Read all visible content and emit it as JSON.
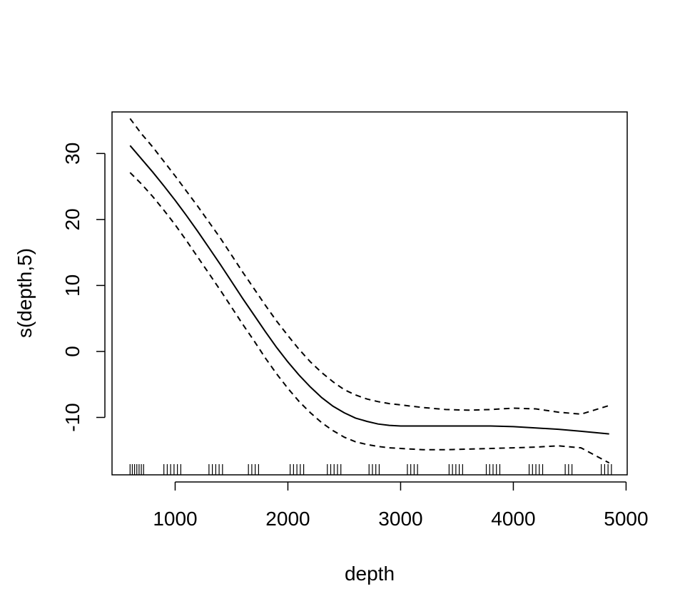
{
  "chart_data": {
    "type": "line",
    "title": "",
    "xlabel": "depth",
    "ylabel": "s(depth,5)",
    "xlim": [
      440,
      5010
    ],
    "ylim": [
      -18.7,
      36.3
    ],
    "x_ticks": [
      1000,
      2000,
      3000,
      4000,
      5000
    ],
    "x_tick_labels": [
      "1000",
      "2000",
      "3000",
      "4000",
      "5000"
    ],
    "y_ticks": [
      -10,
      0,
      10,
      20,
      30
    ],
    "y_tick_labels": [
      "-10",
      "0",
      "10",
      "20",
      "30"
    ],
    "grid": false,
    "legend": "none",
    "series": [
      {
        "style": "solid",
        "x": [
          600,
          700,
          800,
          900,
          1000,
          1100,
          1200,
          1300,
          1400,
          1500,
          1600,
          1700,
          1800,
          1900,
          2000,
          2100,
          2200,
          2300,
          2400,
          2500,
          2600,
          2700,
          2800,
          2900,
          3000,
          3100,
          3200,
          3400,
          3600,
          3800,
          4000,
          4200,
          4400,
          4600,
          4850
        ],
        "y": [
          31.2,
          29.2,
          27.2,
          25.1,
          22.9,
          20.6,
          18.2,
          15.7,
          13.2,
          10.6,
          8.0,
          5.5,
          3.0,
          0.6,
          -1.6,
          -3.6,
          -5.4,
          -7.0,
          -8.3,
          -9.3,
          -10.1,
          -10.6,
          -11.0,
          -11.2,
          -11.3,
          -11.3,
          -11.3,
          -11.3,
          -11.3,
          -11.3,
          -11.4,
          -11.6,
          -11.8,
          -12.1,
          -12.5
        ]
      },
      {
        "style": "dashed",
        "x": [
          600,
          700,
          800,
          900,
          1000,
          1100,
          1200,
          1300,
          1400,
          1500,
          1600,
          1700,
          1800,
          1900,
          2000,
          2100,
          2200,
          2300,
          2400,
          2500,
          2600,
          2700,
          2800,
          2900,
          3000,
          3100,
          3200,
          3400,
          3600,
          3800,
          4000,
          4200,
          4400,
          4600,
          4850
        ],
        "y": [
          35.3,
          33.0,
          31.0,
          28.8,
          26.6,
          24.3,
          22.0,
          19.6,
          17.2,
          14.6,
          12.0,
          9.5,
          7.0,
          4.6,
          2.4,
          0.3,
          -1.6,
          -3.2,
          -4.6,
          -5.8,
          -6.6,
          -7.2,
          -7.6,
          -7.9,
          -8.1,
          -8.3,
          -8.5,
          -8.8,
          -8.9,
          -8.8,
          -8.6,
          -8.7,
          -9.2,
          -9.5,
          -8.2
        ]
      },
      {
        "style": "dashed",
        "x": [
          600,
          700,
          800,
          900,
          1000,
          1100,
          1200,
          1300,
          1400,
          1500,
          1600,
          1700,
          1800,
          1900,
          2000,
          2100,
          2200,
          2300,
          2400,
          2500,
          2600,
          2700,
          2800,
          2900,
          3000,
          3100,
          3200,
          3400,
          3600,
          3800,
          4000,
          4200,
          4400,
          4600,
          4850
        ],
        "y": [
          27.1,
          25.4,
          23.5,
          21.4,
          19.2,
          16.8,
          14.3,
          11.8,
          9.3,
          6.7,
          4.1,
          1.6,
          -1.0,
          -3.4,
          -5.6,
          -7.6,
          -9.3,
          -10.8,
          -12.0,
          -13.0,
          -13.7,
          -14.1,
          -14.4,
          -14.6,
          -14.7,
          -14.8,
          -14.9,
          -14.9,
          -14.8,
          -14.7,
          -14.6,
          -14.5,
          -14.3,
          -14.6,
          -16.9
        ]
      }
    ],
    "rug": [
      600,
      620,
      640,
      660,
      680,
      700,
      720,
      900,
      930,
      960,
      990,
      1020,
      1050,
      1300,
      1330,
      1360,
      1390,
      1420,
      1650,
      1680,
      1710,
      1740,
      2020,
      2050,
      2080,
      2110,
      2140,
      2350,
      2380,
      2410,
      2440,
      2470,
      2720,
      2750,
      2780,
      2810,
      3060,
      3090,
      3120,
      3150,
      3430,
      3460,
      3490,
      3520,
      3550,
      3760,
      3790,
      3820,
      3850,
      3880,
      4140,
      4170,
      4200,
      4230,
      4260,
      4460,
      4490,
      4520,
      4780,
      4810,
      4840,
      4870
    ]
  }
}
